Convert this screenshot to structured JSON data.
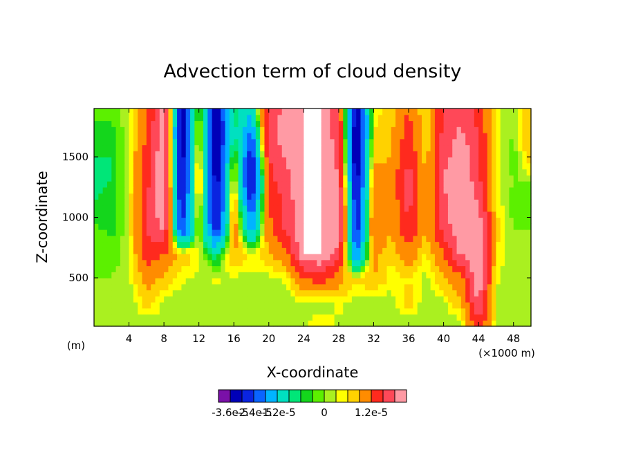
{
  "chart_data": {
    "type": "heatmap",
    "title": "Advection term of cloud density",
    "xlabel": "X-coordinate",
    "ylabel": "Z-coordinate",
    "x_unit_left": "(m)",
    "x_unit_right": "(×1000 m)",
    "xlim": [
      0,
      50
    ],
    "ylim": [
      100,
      1900
    ],
    "xticks": [
      4,
      8,
      12,
      16,
      20,
      24,
      28,
      32,
      36,
      40,
      44,
      48
    ],
    "yticks": [
      500,
      1000,
      1500
    ],
    "colorbar": {
      "labels": [
        "-3.6e-5",
        "-2.4e-5",
        "-1.2e-5",
        "0",
        "1.2e-5"
      ],
      "label_positions": [
        -3.6e-05,
        -2.4e-05,
        -1.2e-05,
        0,
        1.2e-05
      ],
      "levels": [
        -4.2e-05,
        -3.6e-05,
        -3e-05,
        -2.4e-05,
        -1.8e-05,
        -1.2e-05,
        -6e-06,
        -3e-06,
        -1.5e-06,
        0,
        1.5e-06,
        3e-06,
        6e-06,
        1.2e-05,
        1.8e-05,
        2.4e-05
      ],
      "colors": [
        "#7a10a8",
        "#0000b8",
        "#0a24e0",
        "#0a64ff",
        "#00b4ff",
        "#00e0c0",
        "#00e678",
        "#14d61c",
        "#5cf000",
        "#aaf020",
        "#ffff00",
        "#ffd200",
        "#ff8c00",
        "#ff2a1e",
        "#ff4858",
        "#ff9aa4"
      ]
    },
    "x": [
      0,
      2,
      4,
      6,
      8,
      10,
      12,
      14,
      16,
      18,
      20,
      22,
      24,
      26,
      28,
      30,
      32,
      34,
      36,
      38,
      40,
      42,
      44,
      46,
      48,
      50
    ],
    "z": [
      100,
      300,
      500,
      700,
      900,
      1100,
      1300,
      1500,
      1700,
      1900
    ],
    "values": [
      [
        0,
        0,
        1e-06,
        0,
        1e-06,
        0,
        0,
        1e-06,
        0,
        1e-06,
        0,
        0,
        1e-06,
        3e-06,
        1e-06,
        0,
        1e-06,
        0,
        0,
        1e-06,
        0,
        0,
        1.5e-05,
        1e-06,
        0,
        0
      ],
      [
        0,
        1e-06,
        0,
        4e-06,
        1e-06,
        0,
        1e-06,
        0,
        1e-06,
        0,
        1e-06,
        0,
        1e-06,
        0,
        2e-06,
        1e-06,
        0,
        1e-06,
        4e-06,
        0,
        1e-06,
        5e-06,
        2.5e-05,
        1e-06,
        0,
        0
      ],
      [
        0,
        0,
        1e-06,
        8e-06,
        5e-06,
        2e-06,
        1e-06,
        2e-06,
        1e-06,
        1e-06,
        1e-06,
        2e-06,
        1.2e-05,
        1.5e-05,
        8e-06,
        3e-06,
        6e-06,
        2e-06,
        3e-06,
        1e-06,
        5e-06,
        1e-05,
        3e-05,
        2e-06,
        0,
        0
      ],
      [
        0,
        -1e-06,
        1e-06,
        1.5e-05,
        1.2e-05,
        5e-06,
        2e-06,
        -5e-06,
        6e-06,
        2e-06,
        5e-06,
        1e-05,
        3e-05,
        3e-05,
        2e-05,
        -2e-05,
        8e-06,
        3e-06,
        1e-05,
        2e-06,
        1.2e-05,
        2.5e-05,
        3e-05,
        3e-06,
        0,
        0
      ],
      [
        -1e-06,
        -2e-06,
        1e-06,
        1.8e-05,
        2.5e-05,
        -2.5e-05,
        3e-06,
        -3e-05,
        1e-05,
        -1.5e-05,
        1e-05,
        2e-05,
        3e-05,
        3e-05,
        3e-05,
        -3e-05,
        1.2e-05,
        6e-06,
        1.8e-05,
        6e-06,
        2e-05,
        3e-05,
        3e-05,
        4e-06,
        0,
        0
      ],
      [
        -3e-06,
        -2e-06,
        1e-06,
        1.8e-05,
        3e-05,
        -3e-05,
        5e-06,
        -3.5e-05,
        8e-06,
        -2.5e-05,
        1.2e-05,
        2e-05,
        3e-05,
        3e-05,
        2.8e-05,
        -3e-05,
        1e-05,
        6e-06,
        2e-05,
        4e-06,
        2.2e-05,
        3e-05,
        2.5e-05,
        3e-06,
        -1e-06,
        0
      ],
      [
        -4e-06,
        -3e-06,
        1e-06,
        1.6e-05,
        3e-05,
        -3.5e-05,
        8e-06,
        -3.5e-05,
        5e-06,
        -3.5e-05,
        1.5e-05,
        2.2e-05,
        3e-05,
        3e-05,
        2.5e-05,
        -3.5e-05,
        8e-06,
        8e-06,
        2.2e-05,
        5e-06,
        2.4e-05,
        3e-05,
        2e-05,
        2e-06,
        0,
        0
      ],
      [
        -3e-06,
        -3e-06,
        1e-06,
        1.5e-05,
        3e-05,
        -3.5e-05,
        6e-06,
        -3.8e-05,
        2e-06,
        -3e-05,
        1.8e-05,
        2.5e-05,
        3e-05,
        3e-05,
        2.2e-05,
        -3.8e-05,
        5e-06,
        6e-06,
        1.8e-05,
        4e-06,
        2.2e-05,
        2.8e-05,
        2e-05,
        2e-06,
        -1e-06,
        5e-06
      ],
      [
        -2e-06,
        -2e-06,
        1e-06,
        1.2e-05,
        3e-05,
        -3.8e-05,
        4e-06,
        -3.8e-05,
        -5e-06,
        -2e-05,
        2e-05,
        2.8e-05,
        3e-05,
        3e-05,
        2e-05,
        -3.8e-05,
        3e-06,
        5e-06,
        1.5e-05,
        3e-06,
        2e-05,
        2.5e-05,
        1.8e-05,
        2e-06,
        0,
        6e-06
      ],
      [
        -1e-06,
        -1e-06,
        1e-06,
        1e-05,
        3e-05,
        -3.5e-05,
        3e-06,
        -3.5e-05,
        -3e-06,
        -1e-05,
        2e-05,
        2.6e-05,
        3e-05,
        3e-05,
        1.8e-05,
        -3.5e-05,
        2e-06,
        4e-06,
        1.2e-05,
        2e-06,
        1.8e-05,
        2.2e-05,
        1.5e-05,
        2e-06,
        0,
        6e-06
      ]
    ]
  }
}
